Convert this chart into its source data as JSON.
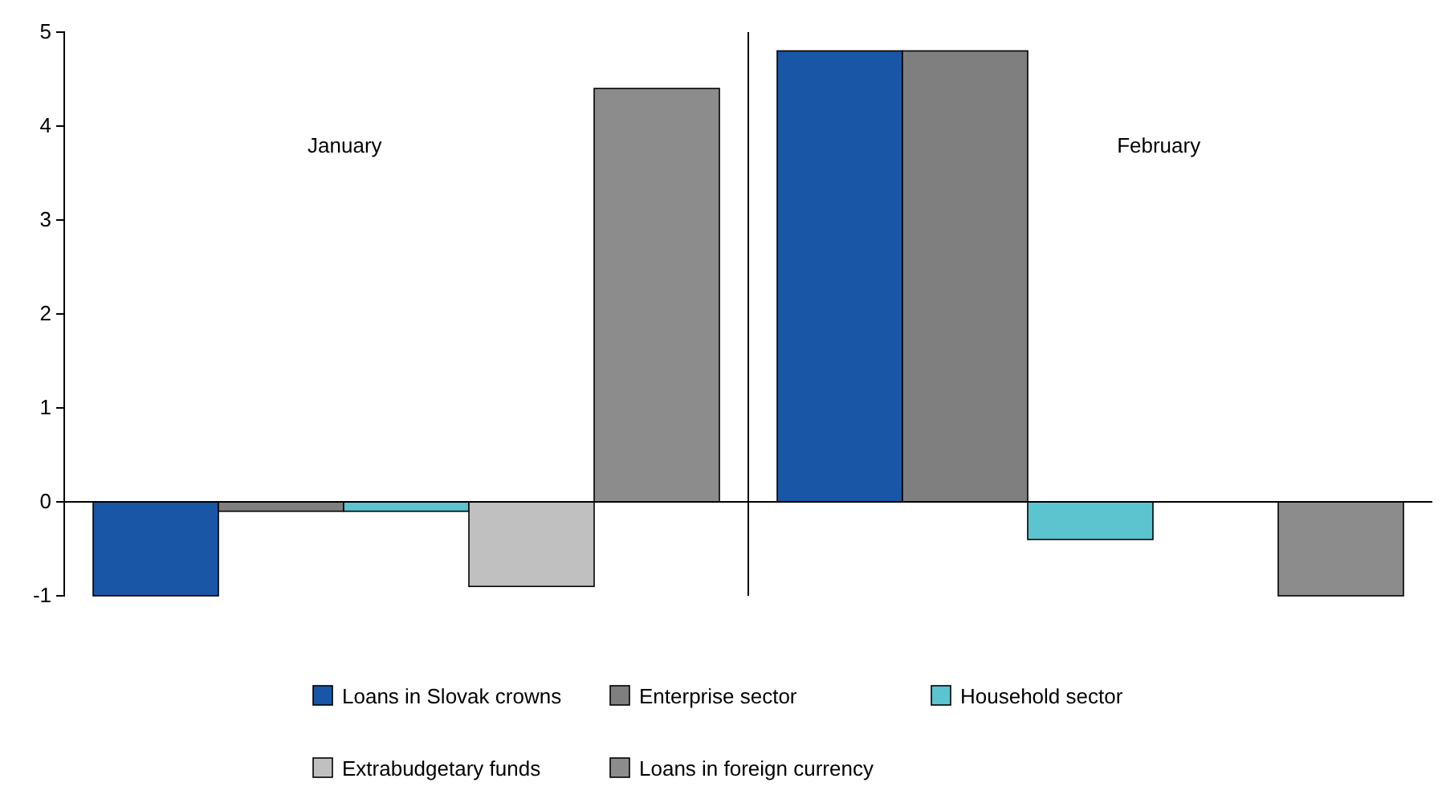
{
  "chart_data": {
    "type": "bar",
    "categories": [
      "January",
      "February"
    ],
    "series": [
      {
        "name": "Loans in Slovak crowns",
        "color": "#1a56a6",
        "values": [
          -1,
          4.8
        ]
      },
      {
        "name": "Enterprise sector",
        "color": "#7f7f7f",
        "values": [
          -0.1,
          4.8
        ]
      },
      {
        "name": "Household sector",
        "color": "#5bc4cf",
        "values": [
          -0.1,
          -0.4
        ]
      },
      {
        "name": "Extrabudgetary funds",
        "color": "#c0c0c0",
        "values": [
          -0.9,
          0
        ]
      },
      {
        "name": "Loans in foreign currency",
        "color": "#8c8c8c",
        "values": [
          4.4,
          -1
        ]
      }
    ],
    "ylim": [
      -1,
      5
    ],
    "yticks": [
      -1,
      0,
      1,
      2,
      3,
      4,
      5
    ],
    "legend": "bottom"
  }
}
